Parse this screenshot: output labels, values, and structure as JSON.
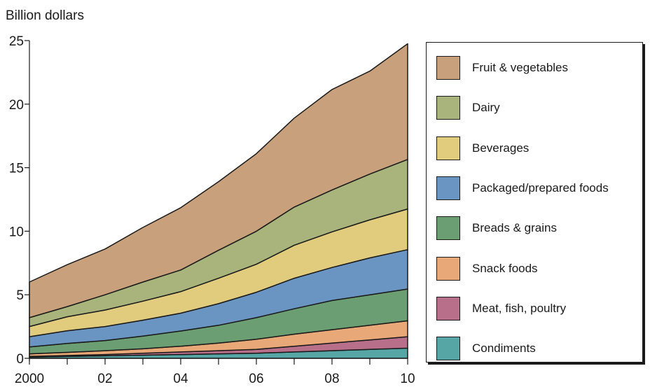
{
  "chart_data": {
    "type": "area",
    "stacked": true,
    "ylabel": "Billion dollars",
    "xlabel": "",
    "x": [
      2000,
      2001,
      2002,
      2003,
      2004,
      2005,
      2006,
      2007,
      2008,
      2009,
      2010
    ],
    "x_tick_labels": [
      "2000",
      "02",
      "04",
      "06",
      "08",
      "10"
    ],
    "x_tick_values": [
      2000,
      2002,
      2004,
      2006,
      2008,
      2010
    ],
    "y_ticks": [
      0,
      5,
      10,
      15,
      20,
      25
    ],
    "ylim": [
      0,
      25
    ],
    "xlim": [
      2000,
      2010
    ],
    "legend_position": "right",
    "series": [
      {
        "name": "Condiments",
        "color": "#56a6a6",
        "values": [
          0.1,
          0.15,
          0.2,
          0.25,
          0.3,
          0.35,
          0.4,
          0.5,
          0.6,
          0.7,
          0.8
        ]
      },
      {
        "name": "Meat, fish, poultry",
        "color": "#b8708a",
        "values": [
          0.05,
          0.07,
          0.1,
          0.15,
          0.2,
          0.25,
          0.3,
          0.45,
          0.6,
          0.75,
          0.9
        ]
      },
      {
        "name": "Snack foods",
        "color": "#e8a878",
        "values": [
          0.2,
          0.25,
          0.3,
          0.35,
          0.45,
          0.6,
          0.8,
          0.95,
          1.05,
          1.15,
          1.25
        ]
      },
      {
        "name": "Breads & grains",
        "color": "#6b9e72",
        "values": [
          0.55,
          0.7,
          0.8,
          1.0,
          1.2,
          1.4,
          1.7,
          2.0,
          2.3,
          2.4,
          2.5
        ]
      },
      {
        "name": "Packaged/prepared foods",
        "color": "#6a95c2",
        "values": [
          0.8,
          1.0,
          1.1,
          1.25,
          1.4,
          1.7,
          2.0,
          2.4,
          2.6,
          2.9,
          3.1
        ]
      },
      {
        "name": "Beverages",
        "color": "#e1cc7e",
        "values": [
          0.8,
          1.1,
          1.3,
          1.5,
          1.7,
          2.0,
          2.2,
          2.6,
          2.8,
          3.0,
          3.2
        ]
      },
      {
        "name": "Dairy",
        "color": "#a8b47c",
        "values": [
          0.7,
          0.8,
          1.2,
          1.5,
          1.7,
          2.2,
          2.6,
          3.0,
          3.3,
          3.6,
          3.9
        ]
      },
      {
        "name": "Fruit & vegetables",
        "color": "#c8a07c",
        "values": [
          2.8,
          3.3,
          3.6,
          4.3,
          4.9,
          5.4,
          6.1,
          7.0,
          7.9,
          8.1,
          9.1
        ]
      }
    ]
  }
}
